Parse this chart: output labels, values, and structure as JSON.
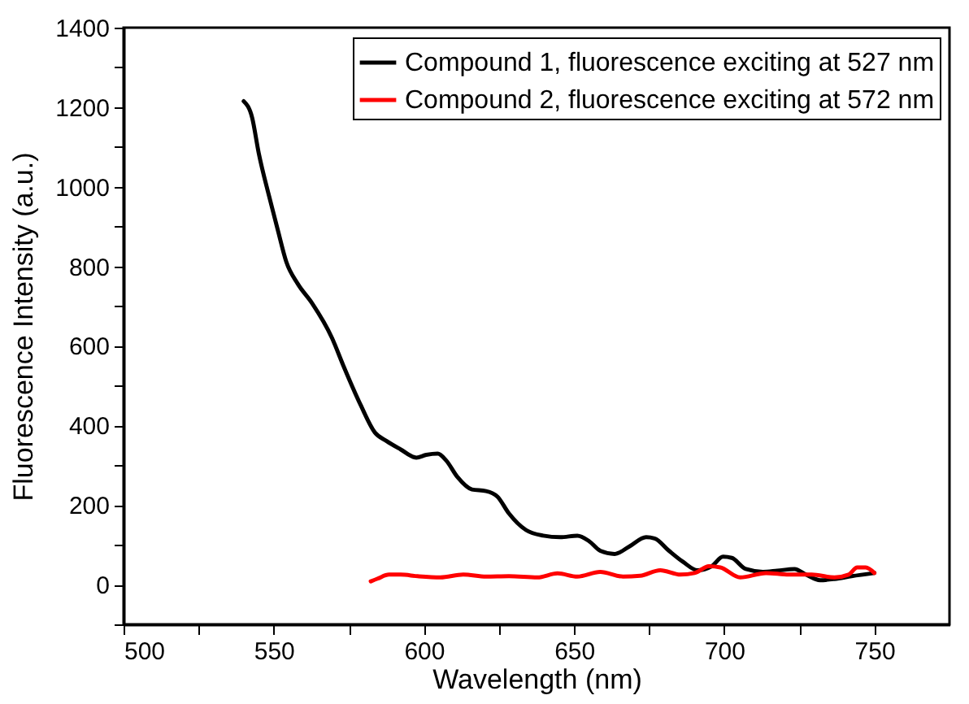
{
  "chart_data": {
    "type": "line",
    "xlabel": "Wavelength (nm)",
    "ylabel": "Fluorescence Intensity (a.u.)",
    "xlim": [
      500,
      775
    ],
    "ylim": [
      -100,
      1400
    ],
    "xticks": [
      500,
      {
        "value": 525,
        "label": null
      },
      550,
      {
        "value": 575,
        "label": null
      },
      600,
      {
        "value": 625,
        "label": null
      },
      650,
      {
        "value": 675,
        "label": null
      },
      700,
      {
        "value": 725,
        "label": null
      },
      750
    ],
    "yticks": [
      {
        "value": -100,
        "label": null
      },
      0,
      {
        "value": 100,
        "label": null
      },
      200,
      {
        "value": 300,
        "label": null
      },
      400,
      {
        "value": 500,
        "label": null
      },
      600,
      {
        "value": 700,
        "label": null
      },
      800,
      {
        "value": 900,
        "label": null
      },
      1000,
      {
        "value": 1100,
        "label": null
      },
      1200,
      {
        "value": 1300,
        "label": null
      },
      1400
    ],
    "grid": false,
    "legend": "top right",
    "line_style": "solid",
    "marker": "none",
    "series": [
      {
        "name": "Compound 1, fluorescence exciting at 527 nm",
        "color": "#000000",
        "x": [
          540,
          542.8,
          545,
          548.5,
          551.3,
          554.2,
          558,
          562.7,
          569.4,
          573.2,
          578.9,
          583.7,
          587.5,
          592.2,
          597.5,
          600.8,
          604.6,
          607.4,
          611.2,
          616,
          620.7,
          624.5,
          628.3,
          634,
          639.7,
          645.4,
          651.1,
          655,
          658.7,
          663.5,
          668.3,
          674,
          676.8,
          681.6,
          686.3,
          691.1,
          695.8,
          699.6,
          702.5,
          707.2,
          712.9,
          717.7,
          723.4,
          727.2,
          731.9,
          736.7,
          742.4,
          750
        ],
        "values": [
          1215,
          1174,
          1085,
          975,
          893,
          811,
          756,
          708,
          620,
          550,
          452,
          382,
          361,
          340,
          319,
          326,
          329,
          312,
          270,
          239,
          235,
          221,
          179,
          137,
          123,
          119,
          123,
          109,
          85,
          77,
          95,
          119,
          116,
          85,
          57,
          36,
          46,
          70,
          67,
          39,
          32,
          35,
          39,
          25,
          11,
          14,
          21,
          29
        ]
      },
      {
        "name": "Compound 2, fluorescence exciting at 572 nm",
        "color": "#ff0000",
        "x": [
          582.3,
          584.6,
          588.4,
          592.2,
          597.9,
          605.5,
          613.1,
          620.7,
          628.3,
          637.8,
          644.5,
          651.1,
          658.7,
          666.3,
          672,
          678.7,
          685.4,
          690.1,
          694.9,
          698.7,
          705.3,
          713.9,
          721.5,
          729.1,
          736.7,
          741.4,
          744.3,
          747.1,
          750
        ],
        "values": [
          8,
          15,
          25,
          25,
          21,
          18,
          25,
          20,
          21,
          18,
          28,
          20,
          32,
          20,
          22,
          36,
          25,
          29,
          46,
          43,
          18,
          29,
          25,
          25,
          18,
          25,
          43,
          43,
          29
        ]
      }
    ]
  }
}
